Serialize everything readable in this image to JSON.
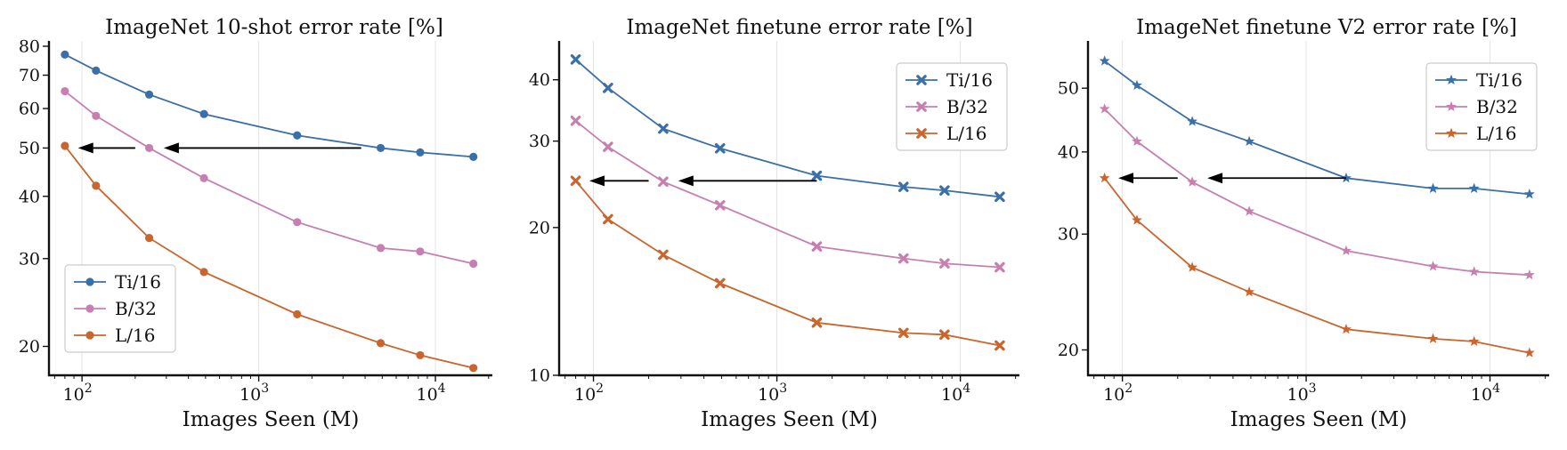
{
  "chart_data": [
    {
      "type": "line",
      "title": "ImageNet 10-shot error rate [%]",
      "xlabel": "Images Seen (M)",
      "ylabel": "",
      "xscale": "log",
      "yscale": "log",
      "xlim": [
        65,
        21000
      ],
      "ylim": [
        17.5,
        82
      ],
      "x_ticks": [
        {
          "value": 100,
          "label": "10",
          "exp": "2"
        },
        {
          "value": 1000,
          "label": "10",
          "exp": "3"
        },
        {
          "value": 10000,
          "label": "10",
          "exp": "4"
        }
      ],
      "y_ticks": [
        {
          "value": 20,
          "label": "20"
        },
        {
          "value": 30,
          "label": "30"
        },
        {
          "value": 40,
          "label": "40"
        },
        {
          "value": 50,
          "label": "50"
        },
        {
          "value": 60,
          "label": "60"
        },
        {
          "value": 70,
          "label": "70"
        },
        {
          "value": 80,
          "label": "80"
        }
      ],
      "marker": "circle",
      "legend_position": "lower-left",
      "x": [
        80,
        120,
        240,
        490,
        1650,
        4900,
        8200,
        16400
      ],
      "series": [
        {
          "name": "Ti/16",
          "color": "#3a6fa8",
          "values": [
            77,
            71.5,
            64,
            58.5,
            53,
            50,
            49,
            48
          ]
        },
        {
          "name": "B/32",
          "color": "#c77fb0",
          "values": [
            65,
            58,
            50,
            43.5,
            35.5,
            31.5,
            31,
            29.3
          ]
        },
        {
          "name": "L/16",
          "color": "#c9652d",
          "values": [
            50.5,
            42,
            33,
            28.2,
            23.2,
            20.3,
            19.2,
            18.1
          ]
        }
      ],
      "arrows": [
        {
          "from": [
            3800,
            50
          ],
          "to": [
            290,
            50
          ]
        },
        {
          "from": [
            200,
            50
          ],
          "to": [
            95,
            50
          ]
        }
      ]
    },
    {
      "type": "line",
      "title": "ImageNet finetune error rate [%]",
      "xlabel": "Images Seen (M)",
      "ylabel": "",
      "xscale": "log",
      "yscale": "log",
      "xlim": [
        65,
        21000
      ],
      "ylim": [
        10,
        48
      ],
      "x_ticks": [
        {
          "value": 100,
          "label": "10",
          "exp": "2"
        },
        {
          "value": 1000,
          "label": "10",
          "exp": "3"
        },
        {
          "value": 10000,
          "label": "10",
          "exp": "4"
        }
      ],
      "y_ticks": [
        {
          "value": 10,
          "label": "10"
        },
        {
          "value": 20,
          "label": "20"
        },
        {
          "value": 30,
          "label": "30"
        },
        {
          "value": 40,
          "label": "40"
        }
      ],
      "marker": "x",
      "legend_position": "upper-right",
      "x": [
        80,
        120,
        240,
        490,
        1650,
        4900,
        8200,
        16400
      ],
      "series": [
        {
          "name": "Ti/16",
          "color": "#3a6fa8",
          "values": [
            44,
            38.5,
            31.8,
            29,
            25.5,
            24.2,
            23.8,
            23.1
          ]
        },
        {
          "name": "B/32",
          "color": "#c77fb0",
          "values": [
            33,
            29.2,
            24.8,
            22.2,
            18.3,
            17.3,
            16.9,
            16.6
          ]
        },
        {
          "name": "L/16",
          "color": "#c9652d",
          "values": [
            24.9,
            20.8,
            17.6,
            15.4,
            12.8,
            12.2,
            12.1,
            11.5
          ]
        }
      ],
      "arrows": [
        {
          "from": [
            1650,
            24.9
          ],
          "to": [
            290,
            24.9
          ]
        },
        {
          "from": [
            200,
            24.9
          ],
          "to": [
            95,
            24.9
          ]
        }
      ]
    },
    {
      "type": "line",
      "title": "ImageNet finetune V2 error rate [%]",
      "xlabel": "Images Seen (M)",
      "ylabel": "",
      "xscale": "log",
      "yscale": "log",
      "xlim": [
        65,
        21000
      ],
      "ylim": [
        18.3,
        59
      ],
      "x_ticks": [
        {
          "value": 100,
          "label": "10",
          "exp": "2"
        },
        {
          "value": 1000,
          "label": "10",
          "exp": "3"
        },
        {
          "value": 10000,
          "label": "10",
          "exp": "4"
        }
      ],
      "y_ticks": [
        {
          "value": 20,
          "label": "20"
        },
        {
          "value": 30,
          "label": "30"
        },
        {
          "value": 40,
          "label": "40"
        },
        {
          "value": 50,
          "label": "50"
        }
      ],
      "marker": "star",
      "legend_position": "upper-right",
      "x": [
        80,
        120,
        240,
        490,
        1650,
        4900,
        8200,
        16400
      ],
      "series": [
        {
          "name": "Ti/16",
          "color": "#3a6fa8",
          "values": [
            55,
            50.5,
            44.5,
            41.5,
            36.5,
            35.2,
            35.2,
            34.5
          ]
        },
        {
          "name": "B/32",
          "color": "#c77fb0",
          "values": [
            46.5,
            41.5,
            36,
            32.5,
            28.3,
            26.8,
            26.3,
            26
          ]
        },
        {
          "name": "L/16",
          "color": "#c9652d",
          "values": [
            36.5,
            31.5,
            26.7,
            24.5,
            21.5,
            20.8,
            20.6,
            19.8
          ]
        }
      ],
      "arrows": [
        {
          "from": [
            1650,
            36.5
          ],
          "to": [
            290,
            36.5
          ]
        },
        {
          "from": [
            200,
            36.5
          ],
          "to": [
            95,
            36.5
          ]
        }
      ]
    }
  ]
}
